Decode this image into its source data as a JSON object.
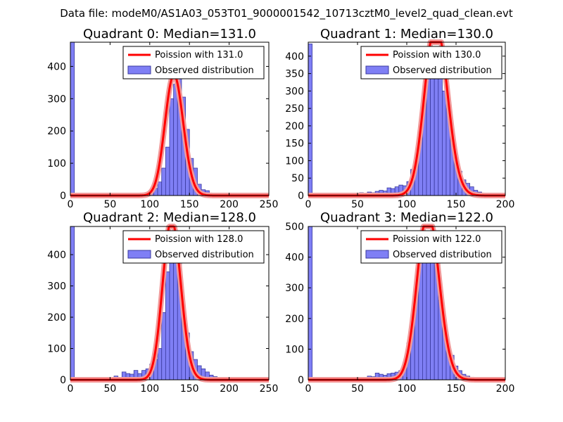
{
  "figure_title": "Data file: modeM0/AS1A03_053T01_9000001542_10713cztM0_level2_quad_clean.evt",
  "colors": {
    "bar_fill": "#7f7ff5",
    "bar_edge": "#3a3a9e",
    "poisson_line": "#ff0000",
    "poisson_glow": "#f29a9a"
  },
  "chart_data": [
    {
      "type": "bar",
      "title": "Quadrant 0: Median=131.0",
      "legend": {
        "line_label": "Poission with 131.0",
        "bar_label": "Observed distribution",
        "placement": "top-right"
      },
      "xlim": [
        0,
        250
      ],
      "ylim": [
        0,
        475
      ],
      "xticks": [
        0,
        50,
        100,
        150,
        200,
        250
      ],
      "yticks": [
        0,
        100,
        200,
        300,
        400
      ],
      "median": 131.0,
      "bin_width": 5,
      "bins": [
        {
          "x": 0,
          "y": 475
        },
        {
          "x": 70,
          "y": 2
        },
        {
          "x": 75,
          "y": 2
        },
        {
          "x": 80,
          "y": 3
        },
        {
          "x": 85,
          "y": 2
        },
        {
          "x": 90,
          "y": 4
        },
        {
          "x": 95,
          "y": 5
        },
        {
          "x": 100,
          "y": 12
        },
        {
          "x": 105,
          "y": 22
        },
        {
          "x": 110,
          "y": 42
        },
        {
          "x": 115,
          "y": 85
        },
        {
          "x": 120,
          "y": 150
        },
        {
          "x": 125,
          "y": 300
        },
        {
          "x": 130,
          "y": 345
        },
        {
          "x": 135,
          "y": 380
        },
        {
          "x": 140,
          "y": 305
        },
        {
          "x": 145,
          "y": 205
        },
        {
          "x": 150,
          "y": 115
        },
        {
          "x": 155,
          "y": 85
        },
        {
          "x": 160,
          "y": 35
        },
        {
          "x": 165,
          "y": 18
        },
        {
          "x": 170,
          "y": 15
        },
        {
          "x": 175,
          "y": 5
        },
        {
          "x": 180,
          "y": 3
        },
        {
          "x": 185,
          "y": 2
        },
        {
          "x": 190,
          "y": 2
        },
        {
          "x": 195,
          "y": 1
        }
      ]
    },
    {
      "type": "bar",
      "title": "Quadrant 1: Median=130.0",
      "legend": {
        "line_label": "Poission with 130.0",
        "bar_label": "Observed distribution",
        "placement": "top-right"
      },
      "xlim": [
        0,
        200
      ],
      "ylim": [
        0,
        440
      ],
      "xticks": [
        0,
        50,
        100,
        150,
        200
      ],
      "yticks": [
        0,
        50,
        100,
        150,
        200,
        250,
        300,
        350,
        400
      ],
      "median": 130.0,
      "bin_width": 4,
      "bins": [
        {
          "x": 0,
          "y": 435
        },
        {
          "x": 48,
          "y": 5
        },
        {
          "x": 52,
          "y": 8
        },
        {
          "x": 56,
          "y": 7
        },
        {
          "x": 60,
          "y": 10
        },
        {
          "x": 64,
          "y": 8
        },
        {
          "x": 68,
          "y": 12
        },
        {
          "x": 72,
          "y": 15
        },
        {
          "x": 76,
          "y": 13
        },
        {
          "x": 80,
          "y": 22
        },
        {
          "x": 84,
          "y": 20
        },
        {
          "x": 88,
          "y": 25
        },
        {
          "x": 92,
          "y": 30
        },
        {
          "x": 96,
          "y": 28
        },
        {
          "x": 100,
          "y": 40
        },
        {
          "x": 104,
          "y": 75
        },
        {
          "x": 108,
          "y": 115
        },
        {
          "x": 112,
          "y": 185
        },
        {
          "x": 116,
          "y": 300
        },
        {
          "x": 120,
          "y": 355
        },
        {
          "x": 124,
          "y": 415
        },
        {
          "x": 128,
          "y": 410
        },
        {
          "x": 132,
          "y": 395
        },
        {
          "x": 136,
          "y": 300
        },
        {
          "x": 140,
          "y": 250
        },
        {
          "x": 144,
          "y": 180
        },
        {
          "x": 148,
          "y": 115
        },
        {
          "x": 152,
          "y": 70
        },
        {
          "x": 156,
          "y": 45
        },
        {
          "x": 160,
          "y": 35
        },
        {
          "x": 164,
          "y": 25
        },
        {
          "x": 168,
          "y": 15
        },
        {
          "x": 172,
          "y": 10
        },
        {
          "x": 176,
          "y": 7
        },
        {
          "x": 180,
          "y": 5
        },
        {
          "x": 184,
          "y": 4
        },
        {
          "x": 188,
          "y": 3
        }
      ]
    },
    {
      "type": "bar",
      "title": "Quadrant 2: Median=128.0",
      "legend": {
        "line_label": "Poission with 128.0",
        "bar_label": "Observed distribution",
        "placement": "top-right"
      },
      "xlim": [
        0,
        250
      ],
      "ylim": [
        0,
        490
      ],
      "xticks": [
        0,
        50,
        100,
        150,
        200,
        250
      ],
      "yticks": [
        0,
        100,
        200,
        300,
        400
      ],
      "median": 128.0,
      "bin_width": 5,
      "bins": [
        {
          "x": 0,
          "y": 490
        },
        {
          "x": 45,
          "y": 2
        },
        {
          "x": 50,
          "y": 5
        },
        {
          "x": 55,
          "y": 12
        },
        {
          "x": 60,
          "y": 8
        },
        {
          "x": 65,
          "y": 25
        },
        {
          "x": 70,
          "y": 20
        },
        {
          "x": 75,
          "y": 18
        },
        {
          "x": 80,
          "y": 30
        },
        {
          "x": 85,
          "y": 20
        },
        {
          "x": 90,
          "y": 30
        },
        {
          "x": 95,
          "y": 35
        },
        {
          "x": 100,
          "y": 50
        },
        {
          "x": 105,
          "y": 65
        },
        {
          "x": 110,
          "y": 100
        },
        {
          "x": 115,
          "y": 215
        },
        {
          "x": 120,
          "y": 345
        },
        {
          "x": 125,
          "y": 395
        },
        {
          "x": 130,
          "y": 470
        },
        {
          "x": 135,
          "y": 395
        },
        {
          "x": 140,
          "y": 210
        },
        {
          "x": 145,
          "y": 150
        },
        {
          "x": 150,
          "y": 90
        },
        {
          "x": 155,
          "y": 65
        },
        {
          "x": 160,
          "y": 45
        },
        {
          "x": 165,
          "y": 35
        },
        {
          "x": 170,
          "y": 25
        },
        {
          "x": 175,
          "y": 15
        },
        {
          "x": 180,
          "y": 10
        },
        {
          "x": 185,
          "y": 8
        },
        {
          "x": 190,
          "y": 5
        },
        {
          "x": 195,
          "y": 3
        },
        {
          "x": 200,
          "y": 2
        }
      ]
    },
    {
      "type": "bar",
      "title": "Quadrant 3: Median=122.0",
      "legend": {
        "line_label": "Poission with 122.0",
        "bar_label": "Observed distribution",
        "placement": "top-right"
      },
      "xlim": [
        0,
        200
      ],
      "ylim": [
        0,
        500
      ],
      "xticks": [
        0,
        50,
        100,
        150,
        200
      ],
      "yticks": [
        0,
        100,
        200,
        300,
        400,
        500
      ],
      "median": 122.0,
      "bin_width": 4,
      "bins": [
        {
          "x": 0,
          "y": 500
        },
        {
          "x": 48,
          "y": 3
        },
        {
          "x": 52,
          "y": 5
        },
        {
          "x": 56,
          "y": 8
        },
        {
          "x": 60,
          "y": 12
        },
        {
          "x": 64,
          "y": 10
        },
        {
          "x": 68,
          "y": 22
        },
        {
          "x": 72,
          "y": 18
        },
        {
          "x": 76,
          "y": 15
        },
        {
          "x": 80,
          "y": 20
        },
        {
          "x": 84,
          "y": 22
        },
        {
          "x": 88,
          "y": 25
        },
        {
          "x": 92,
          "y": 30
        },
        {
          "x": 96,
          "y": 48
        },
        {
          "x": 100,
          "y": 120
        },
        {
          "x": 104,
          "y": 190
        },
        {
          "x": 108,
          "y": 300
        },
        {
          "x": 112,
          "y": 395
        },
        {
          "x": 116,
          "y": 470
        },
        {
          "x": 120,
          "y": 465
        },
        {
          "x": 124,
          "y": 450
        },
        {
          "x": 128,
          "y": 440
        },
        {
          "x": 132,
          "y": 260
        },
        {
          "x": 136,
          "y": 170
        },
        {
          "x": 140,
          "y": 105
        },
        {
          "x": 144,
          "y": 80
        },
        {
          "x": 148,
          "y": 45
        },
        {
          "x": 152,
          "y": 30
        },
        {
          "x": 156,
          "y": 18
        },
        {
          "x": 160,
          "y": 12
        },
        {
          "x": 164,
          "y": 8
        },
        {
          "x": 168,
          "y": 5
        },
        {
          "x": 172,
          "y": 3
        }
      ]
    }
  ]
}
